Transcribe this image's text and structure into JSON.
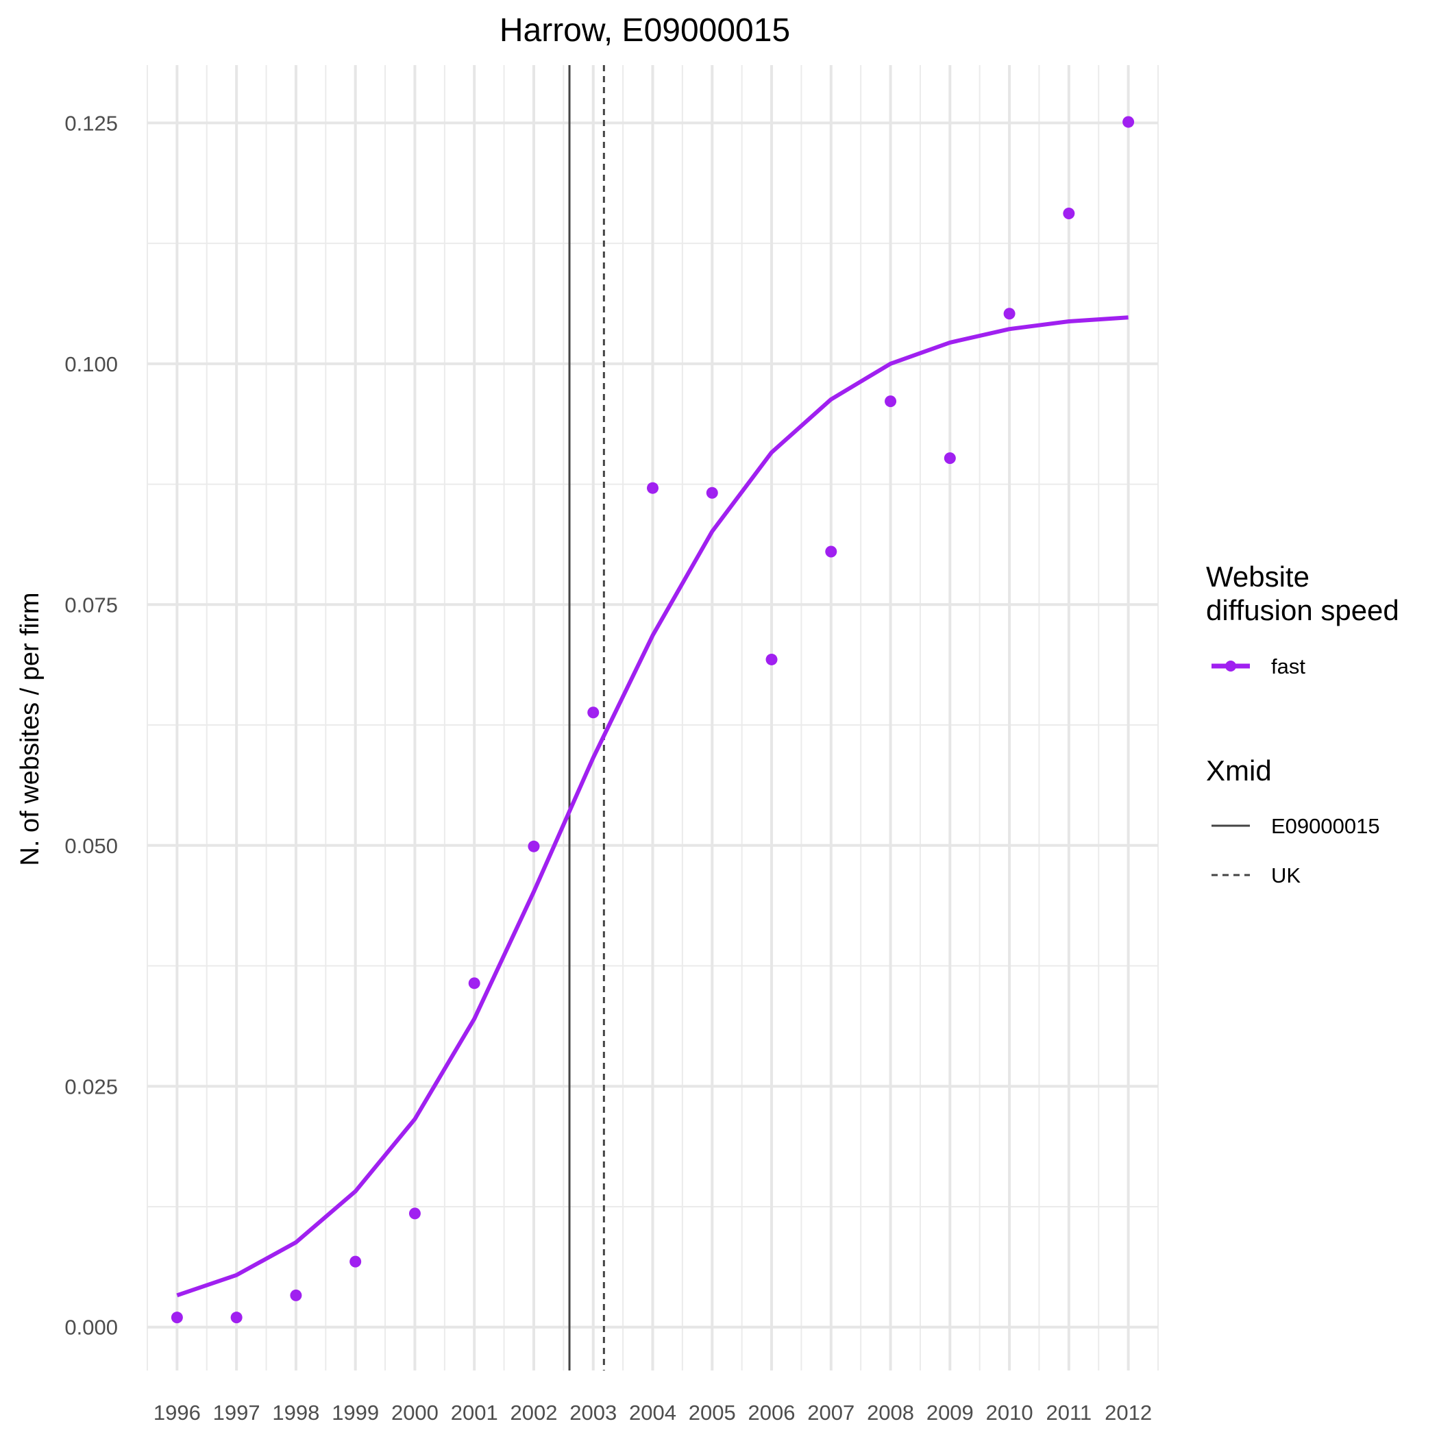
{
  "chart_data": {
    "type": "line",
    "title": "Harrow, E09000015",
    "xlabel": "",
    "ylabel": "N. of websites / per firm",
    "x": [
      1996,
      1997,
      1998,
      1999,
      2000,
      2001,
      2002,
      2003,
      2004,
      2005,
      2006,
      2007,
      2008,
      2009,
      2010,
      2011,
      2012
    ],
    "x_tick_labels": [
      "1996",
      "1997",
      "1998",
      "1999",
      "2000",
      "2001",
      "2002",
      "2003",
      "2004",
      "2005",
      "2006",
      "2007",
      "2008",
      "2009",
      "2010",
      "2011",
      "2012"
    ],
    "y_tick_labels": [
      "0.000",
      "0.025",
      "0.050",
      "0.075",
      "0.100",
      "0.125"
    ],
    "y_ticks": [
      0,
      0.025,
      0.05,
      0.075,
      0.1,
      0.125
    ],
    "xlim": [
      1995.5,
      2012.5
    ],
    "ylim": [
      -0.0045,
      0.131
    ],
    "grid": true,
    "legend_position": "right",
    "series": [
      {
        "name": "fast",
        "color": "#a020f0",
        "points_y": [
          0.001,
          0.001,
          0.0033,
          0.0068,
          0.0118,
          0.0357,
          0.0499,
          0.0638,
          0.0871,
          0.0866,
          0.0693,
          0.0805,
          0.0961,
          0.0902,
          0.1052,
          0.1156,
          0.1251
        ],
        "fit_y": [
          0.0033,
          0.0054,
          0.0088,
          0.0141,
          0.0216,
          0.032,
          0.0452,
          0.0591,
          0.0718,
          0.0826,
          0.0908,
          0.0963,
          0.1,
          0.1022,
          0.1036,
          0.1044,
          0.1048
        ]
      }
    ],
    "vlines": [
      {
        "name": "E09000015",
        "x": 2002.6,
        "style": "solid",
        "color": "#444444"
      },
      {
        "name": "UK",
        "x": 2003.18,
        "style": "dashed",
        "color": "#444444"
      }
    ],
    "legend": {
      "speed_title_lines": [
        "Website",
        "diffusion speed"
      ],
      "speed_items": [
        "fast"
      ],
      "xmid_title": "Xmid",
      "xmid_items": [
        "E09000015",
        "UK"
      ]
    }
  }
}
